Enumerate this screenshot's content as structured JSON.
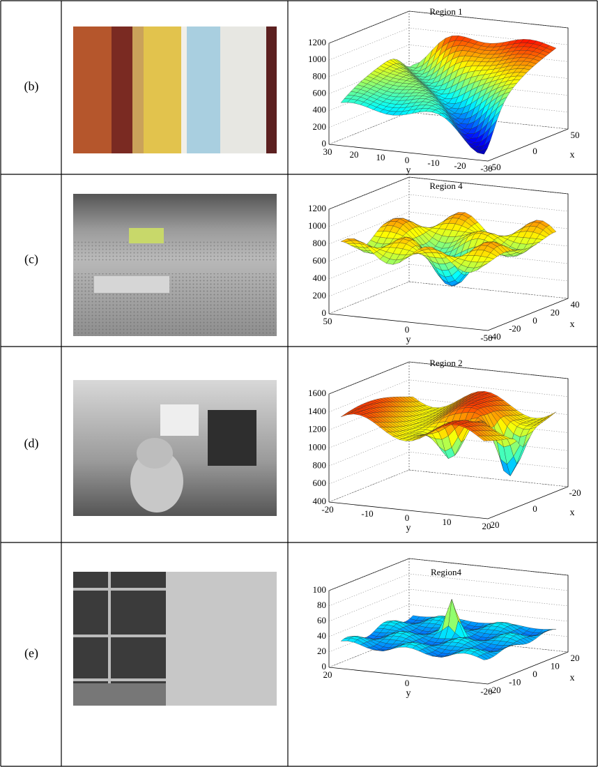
{
  "rows": [
    {
      "label": "(b)",
      "plot": {
        "title": "Region 1",
        "z_ticks": [
          0,
          200,
          400,
          600,
          800,
          1000,
          1200
        ],
        "y_ticks": [
          30,
          20,
          10,
          0,
          -10,
          -20,
          -30
        ],
        "x_ticks": [
          -50,
          0,
          50
        ],
        "y_label": "y",
        "x_label": "x"
      }
    },
    {
      "label": "(c)",
      "plot": {
        "title": "Region 4",
        "z_ticks": [
          0,
          200,
          400,
          600,
          800,
          1000,
          1200
        ],
        "y_ticks": [
          50,
          0,
          -50
        ],
        "x_ticks": [
          -40,
          -20,
          0,
          20,
          40
        ],
        "y_label": "y",
        "x_label": "x"
      }
    },
    {
      "label": "(d)",
      "plot": {
        "title": "Region 2",
        "z_ticks": [
          400,
          600,
          800,
          1000,
          1200,
          1400,
          1600
        ],
        "y_ticks": [
          -20,
          -10,
          0,
          10,
          20
        ],
        "x_ticks": [
          20,
          0,
          -20
        ],
        "y_label": "y",
        "x_label": "x"
      }
    },
    {
      "label": "(e)",
      "plot": {
        "title": "Region4",
        "z_ticks": [
          0,
          20,
          40,
          60,
          80,
          100
        ],
        "y_ticks": [
          20,
          0,
          -20
        ],
        "x_ticks": [
          -20,
          -10,
          0,
          10,
          20
        ],
        "y_label": "y",
        "x_label": "x"
      }
    }
  ]
}
